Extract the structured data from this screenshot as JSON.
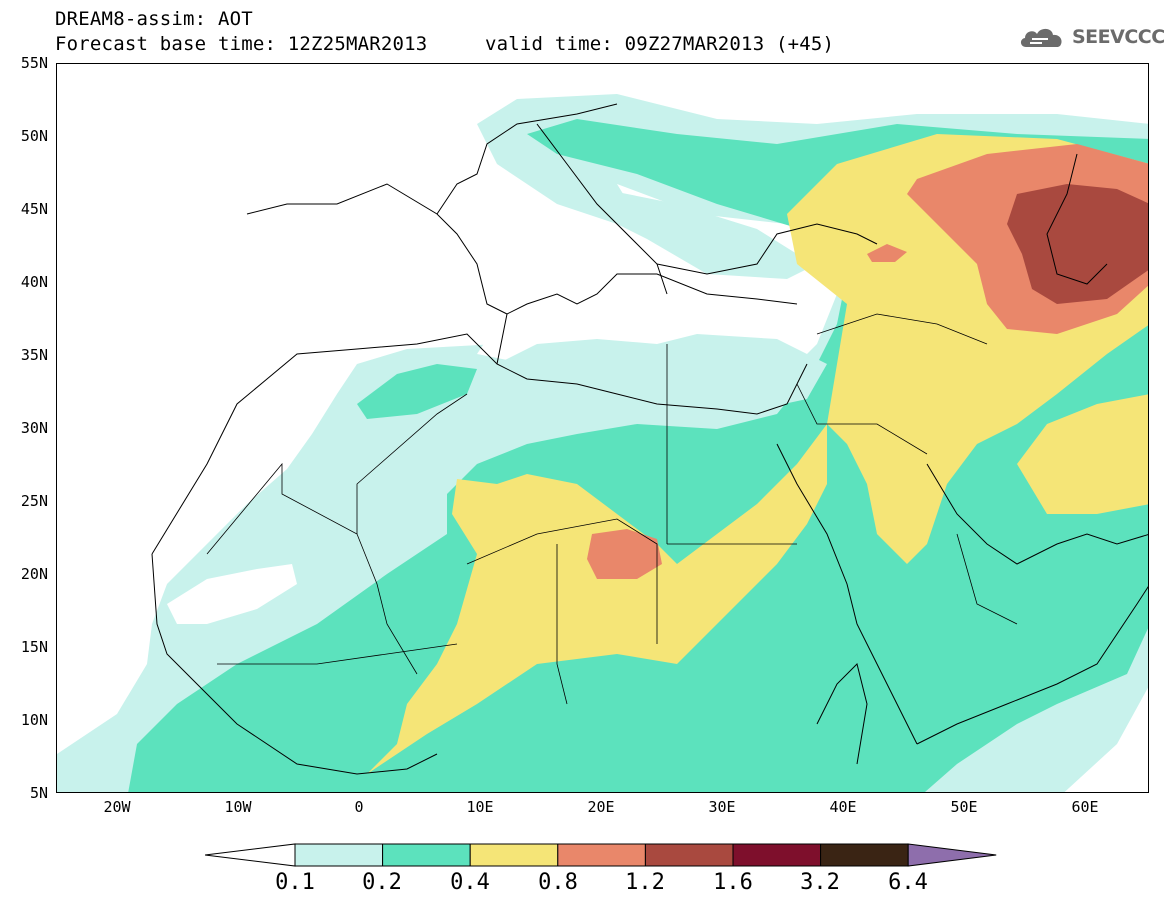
{
  "header": {
    "title_line1": "DREAM8-assim: AOT",
    "title_line2": "Forecast base time: 12Z25MAR2013",
    "valid_time": "valid time: 09Z27MAR2013 (+45)"
  },
  "logo": {
    "text": "SEEVCCC",
    "icon": "cloud-logo-icon"
  },
  "map": {
    "lat_labels": [
      "55N",
      "50N",
      "45N",
      "40N",
      "35N",
      "30N",
      "25N",
      "20N",
      "15N",
      "10N",
      "5N"
    ],
    "lon_labels": [
      "20W",
      "10W",
      "0",
      "10E",
      "20E",
      "30E",
      "40E",
      "50E",
      "60E"
    ],
    "lon_range": [
      -25,
      65
    ],
    "lat_range": [
      5,
      55
    ]
  },
  "colorbar": {
    "labels": [
      "0.1",
      "0.2",
      "0.4",
      "0.8",
      "1.2",
      "1.6",
      "3.2",
      "6.4"
    ],
    "colors": [
      "#ffffff",
      "#c8f2ec",
      "#5ce2bd",
      "#f5e577",
      "#e9876a",
      "#a9493f",
      "#7e0f2c",
      "#3a2414",
      "#8e6eac"
    ]
  },
  "palette": {
    "c1": "#c8f2ec",
    "c2": "#5ce2bd",
    "c3": "#f5e577",
    "c4": "#e9876a",
    "c5": "#a9493f"
  }
}
